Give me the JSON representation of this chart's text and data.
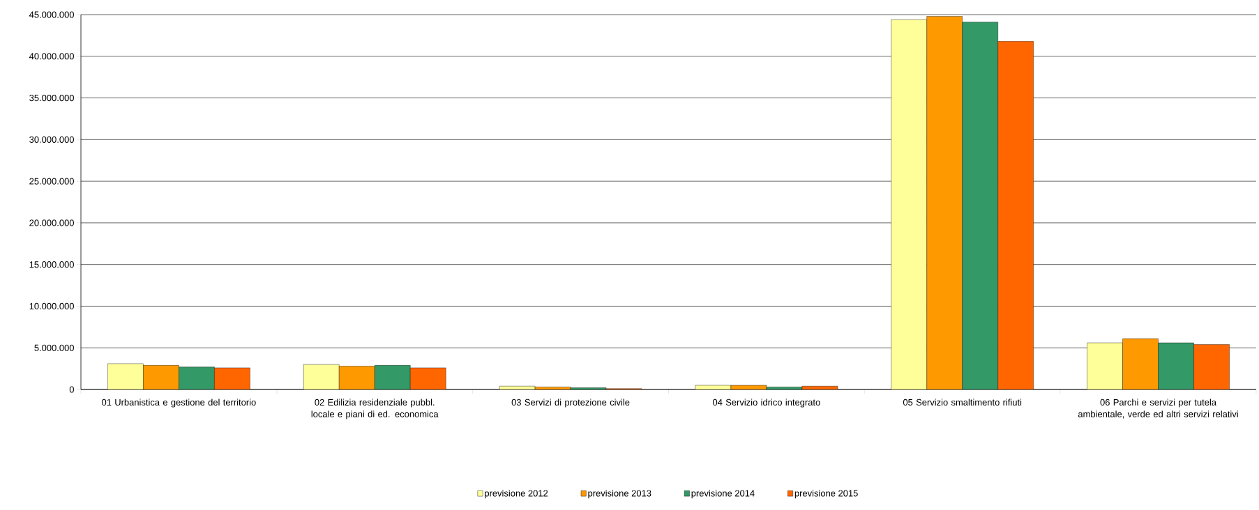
{
  "chart_data": {
    "type": "bar",
    "categories": [
      "01 Urbanistica e gestione del territorio",
      "02 Edilizia residenziale pubbl. locale e piani di ed. economica",
      "03 Servizi di protezione civile",
      "04 Servizio idrico integrato",
      "05 Servizio smaltimento rifiuti",
      "06 Parchi e servizi per tutela ambientale, verde ed altri servizi relativi"
    ],
    "series": [
      {
        "name": "previsione 2012",
        "color": "#ffff99",
        "values": [
          3100000,
          3000000,
          400000,
          500000,
          44400000,
          5600000
        ]
      },
      {
        "name": "previsione 2013",
        "color": "#ff9900",
        "values": [
          2900000,
          2800000,
          300000,
          500000,
          44800000,
          6100000
        ]
      },
      {
        "name": "previsione 2014",
        "color": "#339966",
        "values": [
          2700000,
          2900000,
          200000,
          300000,
          44100000,
          5600000
        ]
      },
      {
        "name": "previsione 2015",
        "color": "#ff6600",
        "values": [
          2600000,
          2600000,
          100000,
          400000,
          41800000,
          5400000
        ]
      }
    ],
    "ylim": [
      0,
      45000000
    ],
    "yticks": [
      0,
      {
        "value": 5000000,
        "label": "5.000.000"
      },
      {
        "value": 10000000,
        "label": "10.000.000"
      },
      {
        "value": 15000000,
        "label": "15.000.000"
      },
      {
        "value": 20000000,
        "label": "20.000.000"
      },
      {
        "value": 25000000,
        "label": "25.000.000"
      },
      {
        "value": 30000000,
        "label": "30.000.000"
      },
      {
        "value": 35000000,
        "label": "35.000.000"
      },
      {
        "value": 40000000,
        "label": "40.000.000"
      },
      {
        "value": 45000000,
        "label": "45.000.000"
      }
    ],
    "grid": "y",
    "legend": "bottom"
  }
}
